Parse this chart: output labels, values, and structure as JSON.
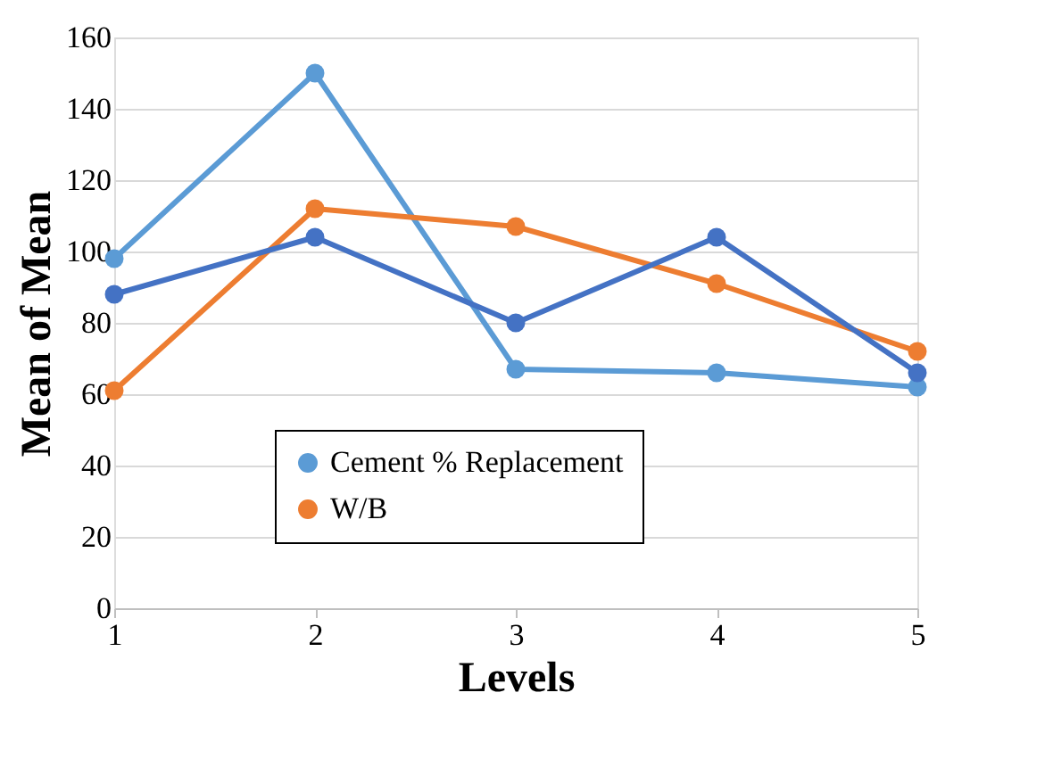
{
  "chart_data": {
    "type": "line",
    "xlabel": "Levels",
    "ylabel": "Mean of Mean",
    "x": [
      1,
      2,
      3,
      4,
      5
    ],
    "xlim": [
      1,
      5
    ],
    "xticks": [
      1,
      2,
      3,
      4,
      5
    ],
    "ylim": [
      0,
      160
    ],
    "yticks": [
      0,
      20,
      40,
      60,
      80,
      100,
      120,
      140,
      160
    ],
    "grid": "y",
    "legend": "bottom",
    "marker": "circle",
    "line_style": "solid",
    "series": [
      {
        "name": "Cement % Replacement",
        "color": "#5b9bd5",
        "values": [
          98,
          150,
          67,
          66,
          62
        ]
      },
      {
        "name": "W/B",
        "color": "#ed7d31",
        "values": [
          61,
          112,
          107,
          91,
          72
        ]
      },
      {
        "color": "#4472c4",
        "values": [
          88,
          104,
          80,
          104,
          66
        ]
      }
    ]
  }
}
